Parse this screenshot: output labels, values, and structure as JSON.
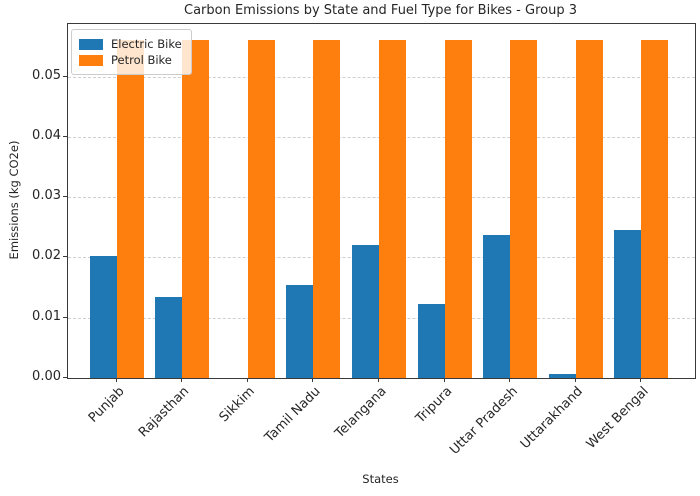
{
  "chart_data": {
    "type": "bar",
    "title": "Carbon Emissions by State and Fuel Type for Bikes - Group 3",
    "xlabel": "States",
    "ylabel": "Emissions (kg CO2e)",
    "categories": [
      "Punjab",
      "Rajasthan",
      "Sikkim",
      "Tamil Nadu",
      "Telangana",
      "Tripura",
      "Uttar Pradesh",
      "Uttarakhand",
      "West Bengal"
    ],
    "series": [
      {
        "name": "Electric Bike",
        "color": "#1f77b4",
        "values": [
          0.0202,
          0.0134,
          0.0,
          0.0155,
          0.0221,
          0.0123,
          0.0238,
          0.0007,
          0.0245
        ]
      },
      {
        "name": "Petrol Bike",
        "color": "#ff7f0e",
        "values": [
          0.056,
          0.056,
          0.056,
          0.056,
          0.056,
          0.056,
          0.056,
          0.056,
          0.056
        ]
      }
    ],
    "yticks": [
      "0.00",
      "0.01",
      "0.02",
      "0.03",
      "0.04",
      "0.05"
    ],
    "ylim": [
      0,
      0.0587
    ],
    "grid": "horizontal-dashed",
    "legend_position": "upper left",
    "colors": {
      "grid": "#cfcfcf",
      "spine": "#3a3a3a",
      "text": "#262626",
      "background": "#ffffff"
    }
  }
}
